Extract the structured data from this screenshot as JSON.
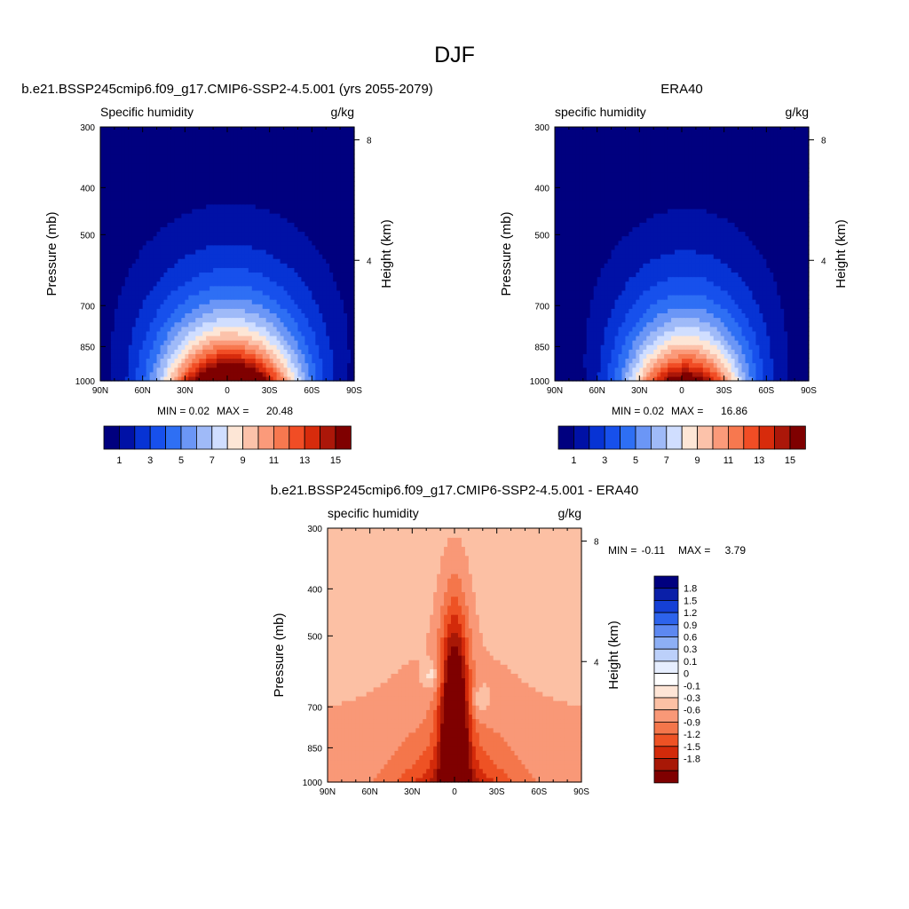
{
  "figure": {
    "title": "DJF"
  },
  "colors": {
    "abs_levels": [
      "#00007f",
      "#0011a6",
      "#0733d4",
      "#1750ec",
      "#2e6ff4",
      "#6b96f6",
      "#9fbaf8",
      "#d0deff",
      "#fde6d6",
      "#fcc2aa",
      "#fb9a7a",
      "#f7784f",
      "#f14d25",
      "#d72b0c",
      "#ab1709",
      "#7f0000"
    ],
    "diff_levels": [
      "#00007f",
      "#0a1fa8",
      "#1540d6",
      "#2d63ec",
      "#5d88f1",
      "#8daff5",
      "#bcd0fa",
      "#e6eeff",
      "#ffffff",
      "#fee5d6",
      "#fcc0a4",
      "#f99877",
      "#f4764b",
      "#ee5224",
      "#d32a0a",
      "#a81806",
      "#7f0000"
    ]
  },
  "chart_data": [
    {
      "type": "heatmap",
      "title": "b.e21.BSSP245cmip6.f09_g17.CMIP6-SSP2-4.5.001 (yrs 2055-2079)",
      "left_label": "Specific humidity",
      "right_label": "g/kg",
      "ylabel": "Pressure (mb)",
      "y2label": "Height (km)",
      "xticks": [
        "90N",
        "60N",
        "30N",
        "0",
        "30S",
        "60S",
        "90S"
      ],
      "yticks": [
        "300",
        "400",
        "500",
        "700",
        "850",
        "1000"
      ],
      "y2ticks": [
        "8",
        "4"
      ],
      "stats": {
        "min_label": "MIN =",
        "min": "0.02",
        "max_label": "MAX =",
        "max": "20.48"
      },
      "colorbar_labels": [
        "1",
        "3",
        "5",
        "7",
        "9",
        "11",
        "13",
        "15"
      ],
      "field": {
        "center_lat": -2,
        "peak": 20.5,
        "lat_scale": 34,
        "vert_decay": 1.35,
        "offset": 0.0
      }
    },
    {
      "type": "heatmap",
      "title": "ERA40",
      "left_label": "specific humidity",
      "right_label": "g/kg",
      "ylabel": "Pressure (mb)",
      "y2label": "Height (km)",
      "xticks": [
        "90N",
        "60N",
        "30N",
        "0",
        "30S",
        "60S",
        "90S"
      ],
      "yticks": [
        "300",
        "400",
        "500",
        "700",
        "850",
        "1000"
      ],
      "y2ticks": [
        "8",
        "4"
      ],
      "stats": {
        "min_label": "MIN =",
        "min": "0.02",
        "max_label": "MAX =",
        "max": "16.86"
      },
      "colorbar_labels": [
        "1",
        "3",
        "5",
        "7",
        "9",
        "11",
        "13",
        "15"
      ],
      "field": {
        "center_lat": -3,
        "peak": 16.9,
        "lat_scale": 30,
        "vert_decay": 1.3,
        "offset": 0.0
      }
    },
    {
      "type": "heatmap",
      "title": "b.e21.BSSP245cmip6.f09_g17.CMIP6-SSP2-4.5.001 - ERA40",
      "left_label": "specific humidity",
      "right_label": "g/kg",
      "ylabel": "Pressure (mb)",
      "y2label": "Height (km)",
      "xticks": [
        "90N",
        "60N",
        "30N",
        "0",
        "30S",
        "60S",
        "90S"
      ],
      "yticks": [
        "300",
        "400",
        "500",
        "700",
        "850",
        "1000"
      ],
      "y2ticks": [
        "8",
        "4"
      ],
      "stats": {
        "min_label": "MIN =",
        "min": "-0.11",
        "max_label": "MAX =",
        "max": "3.79"
      },
      "colorbar_labels": [
        "1.8",
        "1.5",
        "1.2",
        "0.9",
        "0.6",
        "0.3",
        "0.1",
        "0",
        "-0.1",
        "-0.3",
        "-0.6",
        "-0.9",
        "-1.2",
        "-1.5",
        "-1.8"
      ]
    }
  ]
}
